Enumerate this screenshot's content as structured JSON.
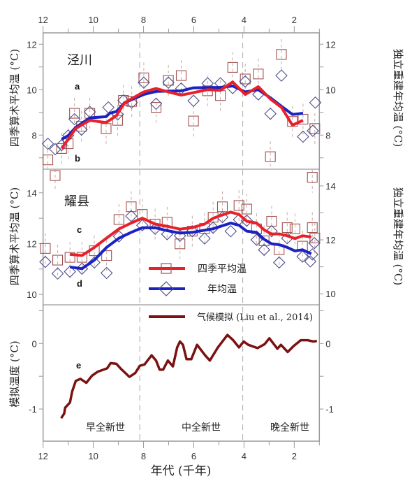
{
  "colors": {
    "seasonal_line": "#e8202a",
    "annual_line": "#1a22c4",
    "model_line": "#7a1212",
    "square_marker": "#a0524f",
    "diamond_marker": "#4d4f8a",
    "frame": "#9a9a9a"
  },
  "legend": {
    "seasonal": "四季平均温",
    "annual": "年均温",
    "model": "气候模拟 (Liu et al., 2014)"
  },
  "x_axis": {
    "label": "年代 (千年)",
    "range": [
      12,
      1
    ],
    "ticks": [
      "12",
      "10",
      "8",
      "6",
      "4",
      "2"
    ],
    "tick_values": [
      12,
      10,
      8,
      6,
      4,
      2
    ]
  },
  "period_boundaries": [
    8.15,
    4.05
  ],
  "periods": [
    "早全新世",
    "中全新世",
    "晚全新世"
  ],
  "chart_data": [
    {
      "type": "line+scatter",
      "site": "泾川",
      "panel_labels": [
        "a",
        "b"
      ],
      "ylabel_left": "四季算术平均温 (°C)",
      "ylabel_right": "独立重建年均温 (°C)",
      "ylim_left": [
        6.5,
        12.5
      ],
      "ylim_right": [
        6.5,
        12.5
      ],
      "yticks_left": [
        "8",
        "10",
        "12"
      ],
      "yticks_right": [
        "8",
        "10",
        "12"
      ],
      "seasonal_points": [
        [
          11.81,
          6.91
        ],
        [
          11.26,
          7.41
        ],
        [
          11.0,
          7.62
        ],
        [
          10.75,
          8.96
        ],
        [
          10.47,
          8.39
        ],
        [
          10.14,
          8.96
        ],
        [
          9.49,
          8.29
        ],
        [
          9.03,
          8.65
        ],
        [
          8.8,
          9.53
        ],
        [
          8.47,
          9.48
        ],
        [
          7.99,
          10.52
        ],
        [
          7.5,
          9.22
        ],
        [
          7.01,
          10.41
        ],
        [
          6.5,
          10.62
        ],
        [
          6.01,
          8.62
        ],
        [
          5.45,
          9.95
        ],
        [
          4.94,
          9.74
        ],
        [
          4.45,
          10.98
        ],
        [
          3.95,
          10.47
        ],
        [
          3.43,
          10.69
        ],
        [
          2.95,
          7.05
        ],
        [
          2.51,
          11.55
        ],
        [
          2.07,
          8.6
        ],
        [
          1.65,
          8.7
        ],
        [
          1.18,
          8.29
        ]
      ],
      "annual_points": [
        [
          11.81,
          7.62
        ],
        [
          11.52,
          7.38
        ],
        [
          11.26,
          7.56
        ],
        [
          11.0,
          7.98
        ],
        [
          10.75,
          8.7
        ],
        [
          10.47,
          8.24
        ],
        [
          10.14,
          9.02
        ],
        [
          9.4,
          9.22
        ],
        [
          9.03,
          8.91
        ],
        [
          8.8,
          9.53
        ],
        [
          8.47,
          9.43
        ],
        [
          7.99,
          10.31
        ],
        [
          7.5,
          9.38
        ],
        [
          7.01,
          10.31
        ],
        [
          6.5,
          10.05
        ],
        [
          6.01,
          9.51
        ],
        [
          5.45,
          10.28
        ],
        [
          4.94,
          10.28
        ],
        [
          4.45,
          10.07
        ],
        [
          3.95,
          10.36
        ],
        [
          3.43,
          9.79
        ],
        [
          2.95,
          8.94
        ],
        [
          2.51,
          10.62
        ],
        [
          1.65,
          7.93
        ],
        [
          1.26,
          8.19
        ],
        [
          1.16,
          9.43
        ]
      ],
      "seasonal_line": [
        [
          11.26,
          7.41
        ],
        [
          11.0,
          7.82
        ],
        [
          10.7,
          8.29
        ],
        [
          10.14,
          8.65
        ],
        [
          9.49,
          8.55
        ],
        [
          9.08,
          8.86
        ],
        [
          8.75,
          9.43
        ],
        [
          7.99,
          9.9
        ],
        [
          7.5,
          10.05
        ],
        [
          7.01,
          9.9
        ],
        [
          6.5,
          9.76
        ],
        [
          5.45,
          10.0
        ],
        [
          4.94,
          9.97
        ],
        [
          4.45,
          10.34
        ],
        [
          3.95,
          9.79
        ],
        [
          3.43,
          10.13
        ],
        [
          2.95,
          9.59
        ],
        [
          2.51,
          9.22
        ],
        [
          2.07,
          8.44
        ],
        [
          1.65,
          8.65
        ]
      ],
      "annual_line": [
        [
          11.26,
          7.82
        ],
        [
          11.0,
          7.98
        ],
        [
          10.7,
          8.34
        ],
        [
          10.14,
          8.76
        ],
        [
          9.49,
          8.81
        ],
        [
          9.35,
          8.96
        ],
        [
          9.08,
          9.04
        ],
        [
          8.75,
          9.43
        ],
        [
          7.99,
          9.79
        ],
        [
          7.5,
          9.92
        ],
        [
          6.5,
          9.95
        ],
        [
          6.01,
          10.08
        ],
        [
          4.94,
          10.1
        ],
        [
          4.45,
          10.16
        ],
        [
          3.95,
          9.9
        ],
        [
          3.43,
          10.0
        ],
        [
          2.95,
          9.64
        ],
        [
          2.51,
          9.27
        ],
        [
          2.07,
          8.91
        ],
        [
          1.65,
          8.96
        ]
      ]
    },
    {
      "type": "line+scatter",
      "site": "耀县",
      "panel_labels": [
        "c",
        "d"
      ],
      "ylabel_left": "四季算术平均温 (°C)",
      "ylabel_right": "独立重建年均温 (°C)",
      "ylim_left": [
        9.59,
        14.93
      ],
      "ylim_right": [
        9.59,
        14.62
      ],
      "yticks_left": [
        "10",
        "12",
        "14"
      ],
      "yticks_right": [
        "10",
        "12",
        "14"
      ],
      "seasonal_points": [
        [
          11.91,
          11.81
        ],
        [
          11.52,
          14.68
        ],
        [
          11.42,
          11.35
        ],
        [
          10.93,
          11.46
        ],
        [
          10.45,
          11.46
        ],
        [
          9.96,
          11.72
        ],
        [
          9.47,
          11.53
        ],
        [
          8.98,
          12.95
        ],
        [
          8.49,
          13.45
        ],
        [
          8.05,
          13.15
        ],
        [
          7.54,
          12.77
        ],
        [
          7.06,
          12.84
        ],
        [
          6.55,
          11.99
        ],
        [
          6.06,
          12.49
        ],
        [
          5.57,
          12.6
        ],
        [
          5.23,
          13.04
        ],
        [
          4.86,
          13.45
        ],
        [
          4.2,
          13.5
        ],
        [
          3.89,
          13.36
        ],
        [
          3.5,
          12.58
        ],
        [
          3.2,
          12.11
        ],
        [
          2.9,
          12.88
        ],
        [
          2.6,
          11.76
        ],
        [
          2.28,
          12.63
        ],
        [
          1.97,
          12.58
        ],
        [
          1.67,
          11.9
        ],
        [
          1.28,
          14.61
        ],
        [
          1.28,
          12.63
        ],
        [
          1.18,
          12.22
        ]
      ],
      "annual_points": [
        [
          11.91,
          11.18
        ],
        [
          11.42,
          10.75
        ],
        [
          10.93,
          10.82
        ],
        [
          10.45,
          10.93
        ],
        [
          9.96,
          11.16
        ],
        [
          9.47,
          10.77
        ],
        [
          8.98,
          12.13
        ],
        [
          8.49,
          12.88
        ],
        [
          8.05,
          12.54
        ],
        [
          7.54,
          12.41
        ],
        [
          7.06,
          12.21
        ],
        [
          6.55,
          12.15
        ],
        [
          6.06,
          12.32
        ],
        [
          5.57,
          12.05
        ],
        [
          5.23,
          12.45
        ],
        [
          4.86,
          12.84
        ],
        [
          4.53,
          12.32
        ],
        [
          4.2,
          12.75
        ],
        [
          3.89,
          12.71
        ],
        [
          3.5,
          12.0
        ],
        [
          3.2,
          11.63
        ],
        [
          2.9,
          12.32
        ],
        [
          2.6,
          11.16
        ],
        [
          2.28,
          12.06
        ],
        [
          1.67,
          11.38
        ],
        [
          1.36,
          11.2
        ],
        [
          1.28,
          11.46
        ],
        [
          1.2,
          11.88
        ]
      ],
      "seasonal_line": [
        [
          10.93,
          11.58
        ],
        [
          10.45,
          11.53
        ],
        [
          9.96,
          11.85
        ],
        [
          9.47,
          12.22
        ],
        [
          8.98,
          12.58
        ],
        [
          8.49,
          12.81
        ],
        [
          8.05,
          13.0
        ],
        [
          7.54,
          12.77
        ],
        [
          7.06,
          12.68
        ],
        [
          6.55,
          12.57
        ],
        [
          6.06,
          12.63
        ],
        [
          5.57,
          12.77
        ],
        [
          5.23,
          13.0
        ],
        [
          4.53,
          13.24
        ],
        [
          4.2,
          13.15
        ],
        [
          3.89,
          12.88
        ],
        [
          3.5,
          12.81
        ],
        [
          3.2,
          12.54
        ],
        [
          2.9,
          12.38
        ],
        [
          2.6,
          12.38
        ],
        [
          2.28,
          12.31
        ],
        [
          1.97,
          12.2
        ],
        [
          1.67,
          12.31
        ],
        [
          1.32,
          12.26
        ]
      ],
      "annual_line": [
        [
          10.93,
          10.99
        ],
        [
          10.45,
          10.93
        ],
        [
          9.96,
          11.25
        ],
        [
          9.47,
          11.72
        ],
        [
          8.98,
          12.06
        ],
        [
          8.49,
          12.28
        ],
        [
          8.05,
          12.45
        ],
        [
          7.54,
          12.45
        ],
        [
          7.06,
          12.34
        ],
        [
          6.55,
          12.25
        ],
        [
          6.06,
          12.28
        ],
        [
          5.23,
          12.41
        ],
        [
          4.53,
          12.62
        ],
        [
          4.2,
          12.54
        ],
        [
          3.89,
          12.32
        ],
        [
          3.5,
          12.28
        ],
        [
          3.2,
          12.02
        ],
        [
          2.9,
          11.85
        ],
        [
          2.6,
          11.82
        ],
        [
          2.28,
          11.72
        ],
        [
          1.97,
          11.59
        ],
        [
          1.67,
          11.63
        ],
        [
          1.32,
          11.48
        ]
      ]
    },
    {
      "type": "line",
      "panel_labels": [
        "e"
      ],
      "ylabel_left": "模拟温度 (°C)",
      "ylim_left": [
        -1.49,
        0.59
      ],
      "ylim_right": [
        -1.49,
        0.59
      ],
      "yticks_left": [
        "-1",
        "0"
      ],
      "yticks_right": [
        "-1",
        "0"
      ],
      "model_line": [
        [
          11.28,
          -1.14
        ],
        [
          11.16,
          -1.07
        ],
        [
          11.12,
          -0.98
        ],
        [
          10.93,
          -0.9
        ],
        [
          10.84,
          -0.73
        ],
        [
          10.7,
          -0.57
        ],
        [
          10.51,
          -0.54
        ],
        [
          10.28,
          -0.6
        ],
        [
          10.05,
          -0.49
        ],
        [
          9.82,
          -0.43
        ],
        [
          9.45,
          -0.38
        ],
        [
          9.31,
          -0.3
        ],
        [
          9.08,
          -0.31
        ],
        [
          8.89,
          -0.39
        ],
        [
          8.56,
          -0.51
        ],
        [
          8.33,
          -0.45
        ],
        [
          8.15,
          -0.34
        ],
        [
          7.96,
          -0.32
        ],
        [
          7.68,
          -0.18
        ],
        [
          7.5,
          -0.26
        ],
        [
          7.36,
          -0.4
        ],
        [
          7.22,
          -0.4
        ],
        [
          7.03,
          -0.26
        ],
        [
          6.83,
          -0.35
        ],
        [
          6.66,
          -0.06
        ],
        [
          6.55,
          0.03
        ],
        [
          6.43,
          -0.02
        ],
        [
          6.29,
          -0.24
        ],
        [
          6.1,
          -0.24
        ],
        [
          5.87,
          -0.02
        ],
        [
          5.55,
          -0.18
        ],
        [
          5.36,
          -0.26
        ],
        [
          5.04,
          -0.06
        ],
        [
          4.66,
          0.13
        ],
        [
          4.43,
          0.05
        ],
        [
          4.2,
          -0.06
        ],
        [
          4.01,
          0.03
        ],
        [
          3.83,
          -0.02
        ],
        [
          3.46,
          -0.07
        ],
        [
          3.18,
          -0.01
        ],
        [
          2.99,
          0.08
        ],
        [
          2.67,
          -0.08
        ],
        [
          2.53,
          -0.02
        ],
        [
          2.26,
          -0.13
        ],
        [
          2.03,
          -0.04
        ],
        [
          1.74,
          0.05
        ],
        [
          1.47,
          0.05
        ],
        [
          1.24,
          0.03
        ],
        [
          1.1,
          0.04
        ]
      ]
    }
  ]
}
